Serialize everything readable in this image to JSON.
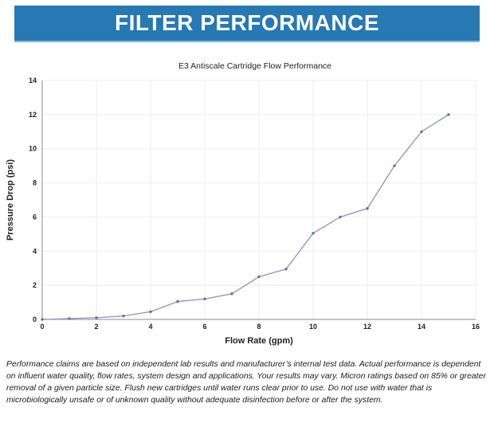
{
  "header": {
    "title": "FILTER PERFORMANCE",
    "bg_color": "#2679b3",
    "text_color": "#ffffff"
  },
  "chart_data": {
    "type": "line",
    "title": "E3 Antiscale Cartridge Flow Performance",
    "xlabel": "Flow Rate (gpm)",
    "ylabel": "Pressure Drop (psi)",
    "x": [
      0,
      1,
      2,
      3,
      4,
      5,
      6,
      7,
      8,
      9,
      10,
      11,
      12,
      13,
      14,
      15
    ],
    "y": [
      0,
      0.05,
      0.1,
      0.2,
      0.45,
      1.05,
      1.2,
      1.5,
      2.5,
      2.95,
      5.05,
      6,
      6.5,
      9,
      11,
      12
    ],
    "xlim": [
      0,
      16
    ],
    "ylim": [
      0,
      14
    ],
    "xticks": [
      0,
      2,
      4,
      6,
      8,
      10,
      12,
      14,
      16
    ],
    "yticks": [
      0,
      2,
      4,
      6,
      8,
      10,
      12,
      14
    ],
    "grid": true,
    "gridline_color": "#eeeef3",
    "axis_color": "#8a8a8a",
    "line_color": "#9597cb",
    "marker_color": "#6a6aad",
    "legend_position": "none"
  },
  "footer": {
    "disclaimer": "Performance claims are based on independent lab results and manufacturer’s internal test data. Actual performance is dependent on influent water quality, flow rates, system design and applications. Your results may vary. Micron ratings based on 85% or greater removal of a given particle size. Flush new cartridges until water runs clear prior to use. Do not use with water that is microbiologically unsafe or of unknown quality without adequate disinfection before or after the system."
  }
}
